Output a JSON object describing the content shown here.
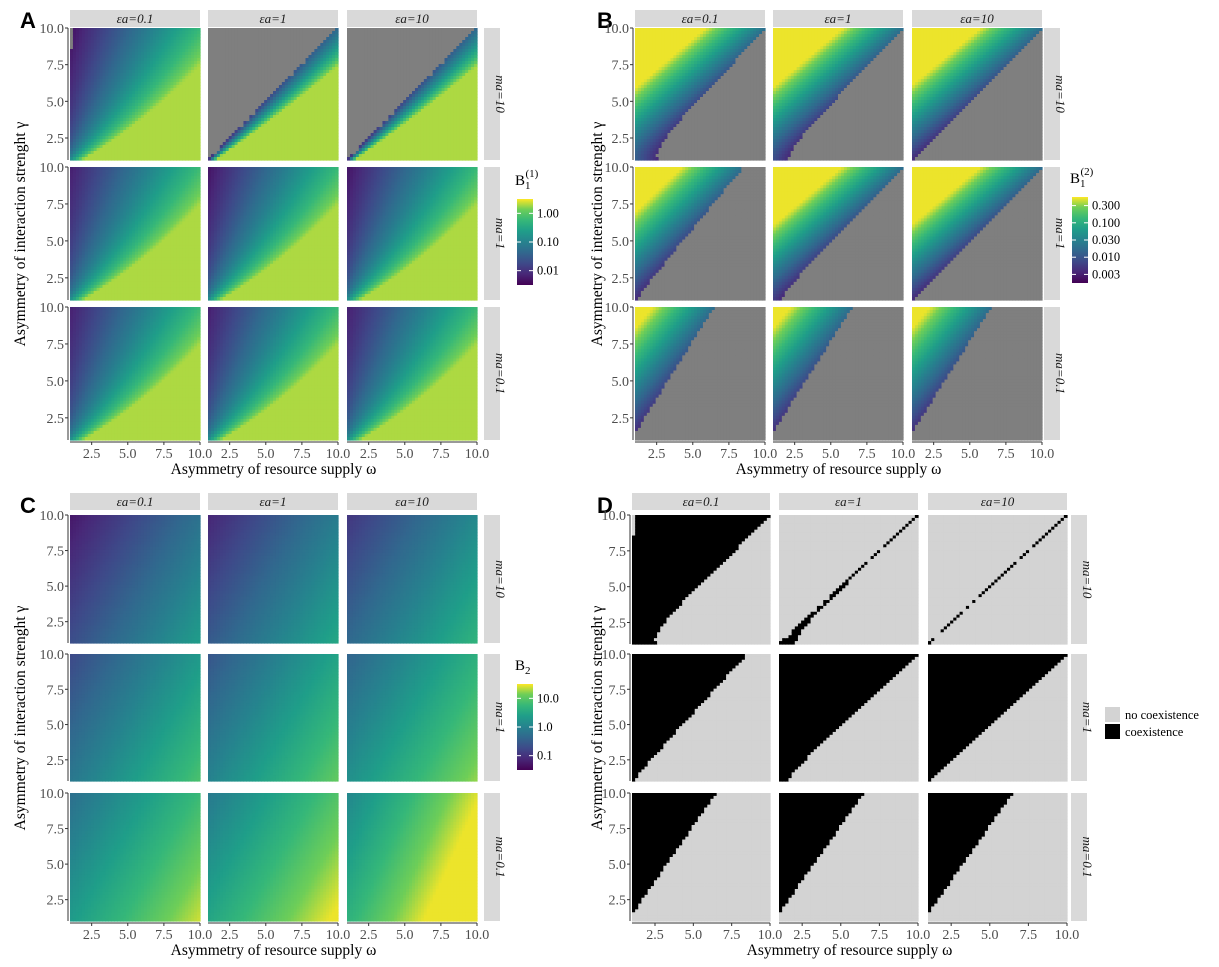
{
  "chart_data": [
    {
      "panel": "A",
      "type": "heatmap",
      "value_kind": "B1_1",
      "col_strips": [
        "εa=0.1",
        "εa=1",
        "εa=10"
      ],
      "row_strips": [
        "ma=10",
        "ma=1",
        "ma=0.1"
      ],
      "col_params": [
        0.1,
        1,
        10
      ],
      "row_params": [
        10,
        1,
        0.1
      ],
      "xlabel": "Asymmetry of resource supply ω",
      "ylabel": "Asymmetry of interaction strenght γ",
      "xlim": [
        1,
        10
      ],
      "ylim": [
        1,
        10
      ],
      "xticks": [
        "2.5",
        "5.0",
        "7.5",
        "10.0"
      ],
      "yticks": [
        "2.5",
        "5.0",
        "7.5",
        "10.0"
      ],
      "legend": {
        "type": "colorbar",
        "title_base": "B",
        "title_sub": "1",
        "title_sup": "(1)",
        "labels": [
          "1.00",
          "0.10",
          "0.01"
        ],
        "colormap": "viridis",
        "scale": "log"
      },
      "no_data_color": "#7f7f7f"
    },
    {
      "panel": "B",
      "type": "heatmap",
      "value_kind": "B1_2",
      "col_strips": [
        "εa=0.1",
        "εa=1",
        "εa=10"
      ],
      "row_strips": [
        "ma=10",
        "ma=1",
        "ma=0.1"
      ],
      "col_params": [
        0.1,
        1,
        10
      ],
      "row_params": [
        10,
        1,
        0.1
      ],
      "xlabel": "Asymmetry of resource supply ω",
      "ylabel": "Asymmetry of interaction strenght γ",
      "xlim": [
        1,
        10
      ],
      "ylim": [
        1,
        10
      ],
      "xticks": [
        "2.5",
        "5.0",
        "7.5",
        "10.0"
      ],
      "yticks": [
        "2.5",
        "5.0",
        "7.5",
        "10.0"
      ],
      "legend": {
        "type": "colorbar",
        "title_base": "B",
        "title_sub": "1",
        "title_sup": "(2)",
        "labels": [
          "0.300",
          "0.100",
          "0.030",
          "0.010",
          "0.003"
        ],
        "colormap": "viridis",
        "scale": "log"
      },
      "no_data_color": "#7f7f7f"
    },
    {
      "panel": "C",
      "type": "heatmap",
      "value_kind": "B2",
      "col_strips": [
        "εa=0.1",
        "εa=1",
        "εa=10"
      ],
      "row_strips": [
        "ma=10",
        "ma=1",
        "ma=0.1"
      ],
      "col_params": [
        0.1,
        1,
        10
      ],
      "row_params": [
        10,
        1,
        0.1
      ],
      "xlabel": "Asymmetry of resource supply ω",
      "ylabel": "Asymmetry of interaction strenght γ",
      "xlim": [
        1,
        10
      ],
      "ylim": [
        1,
        10
      ],
      "xticks": [
        "2.5",
        "5.0",
        "7.5",
        "10.0"
      ],
      "yticks": [
        "2.5",
        "5.0",
        "7.5",
        "10.0"
      ],
      "legend": {
        "type": "colorbar",
        "title_base": "B",
        "title_sub": "2",
        "title_sup": "",
        "labels": [
          "10.0",
          "1.0",
          "0.1"
        ],
        "colormap": "viridis",
        "scale": "log"
      }
    },
    {
      "panel": "D",
      "type": "heatmap",
      "value_kind": "coexistence",
      "col_strips": [
        "εa=0.1",
        "εa=1",
        "εa=10"
      ],
      "row_strips": [
        "ma=10",
        "ma=1",
        "ma=0.1"
      ],
      "col_params": [
        0.1,
        1,
        10
      ],
      "row_params": [
        10,
        1,
        0.1
      ],
      "xlabel": "Asymmetry of resource supply ω",
      "ylabel": "Asymmetry of interaction strenght γ",
      "xlim": [
        1,
        10
      ],
      "ylim": [
        1,
        10
      ],
      "xticks": [
        "2.5",
        "5.0",
        "7.5",
        "10.0"
      ],
      "yticks": [
        "2.5",
        "5.0",
        "7.5",
        "10.0"
      ],
      "legend": {
        "type": "categorical",
        "items": [
          {
            "label": "no coexistence",
            "color": "#d3d3d3"
          },
          {
            "label": "coexistence",
            "color": "#000000"
          }
        ]
      }
    }
  ]
}
